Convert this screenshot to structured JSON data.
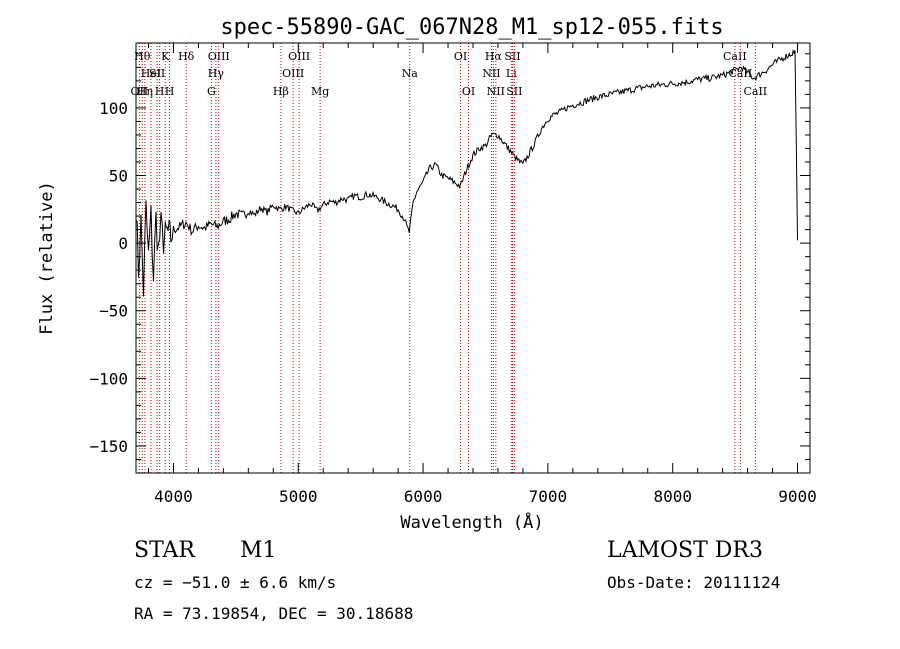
{
  "chart_data": {
    "type": "line",
    "title": "spec-55890-GAC_067N28_M1_sp12-055.fits",
    "xlabel": "Wavelength (Å)",
    "ylabel": "Flux (relative)",
    "xlim": [
      3700,
      9100
    ],
    "ylim": [
      -170,
      148
    ],
    "x_ticks": [
      {
        "value": 4000,
        "label": "4000"
      },
      {
        "value": 5000,
        "label": "5000"
      },
      {
        "value": 6000,
        "label": "6000"
      },
      {
        "value": 7000,
        "label": "7000"
      },
      {
        "value": 8000,
        "label": "8000"
      },
      {
        "value": 9000,
        "label": "9000"
      }
    ],
    "y_ticks": [
      {
        "value": 100,
        "label": "100"
      },
      {
        "value": 50,
        "label": "50"
      },
      {
        "value": 0,
        "label": "0"
      },
      {
        "value": -50,
        "label": "−50"
      },
      {
        "value": -100,
        "label": "−100"
      },
      {
        "value": -150,
        "label": "−150"
      }
    ],
    "series": [
      {
        "name": "flux",
        "x": [
          3700,
          3720,
          3740,
          3760,
          3780,
          3800,
          3820,
          3840,
          3860,
          3880,
          3900,
          3920,
          3950,
          3980,
          4000,
          4050,
          4100,
          4150,
          4200,
          4250,
          4300,
          4350,
          4400,
          4450,
          4500,
          4550,
          4600,
          4650,
          4700,
          4750,
          4800,
          4850,
          4900,
          4950,
          5000,
          5050,
          5100,
          5150,
          5200,
          5250,
          5300,
          5350,
          5400,
          5450,
          5500,
          5550,
          5600,
          5650,
          5700,
          5750,
          5800,
          5850,
          5870,
          5890,
          5900,
          5920,
          5950,
          6000,
          6050,
          6100,
          6150,
          6200,
          6250,
          6300,
          6350,
          6400,
          6450,
          6500,
          6550,
          6600,
          6650,
          6700,
          6750,
          6800,
          6850,
          6900,
          6950,
          7000,
          7050,
          7100,
          7150,
          7200,
          7300,
          7400,
          7500,
          7600,
          7700,
          7800,
          7900,
          8000,
          8100,
          8200,
          8300,
          8400,
          8450,
          8500,
          8550,
          8600,
          8650,
          8700,
          8750,
          8800,
          8850,
          8900,
          8950,
          8980,
          9000
        ],
        "y": [
          30,
          -20,
          15,
          -35,
          25,
          -10,
          20,
          -25,
          18,
          -5,
          12,
          2,
          8,
          4,
          10,
          12,
          15,
          9,
          13,
          11,
          14,
          12,
          16,
          18,
          22,
          20,
          24,
          21,
          26,
          23,
          28,
          25,
          27,
          24,
          22,
          26,
          29,
          24,
          28,
          31,
          30,
          33,
          32,
          35,
          34,
          36,
          35,
          33,
          30,
          28,
          25,
          18,
          12,
          8,
          15,
          30,
          38,
          45,
          55,
          58,
          50,
          48,
          45,
          42,
          55,
          65,
          70,
          72,
          80,
          80,
          74,
          68,
          62,
          58,
          66,
          75,
          85,
          92,
          95,
          97,
          100,
          102,
          105,
          108,
          110,
          112,
          114,
          116,
          117,
          118,
          119,
          121,
          122,
          124,
          126,
          128,
          130,
          126,
          122,
          125,
          128,
          132,
          135,
          138,
          140,
          142,
          2
        ]
      }
    ],
    "line_markers": [
      {
        "wavelength": 3727,
        "label": "OII",
        "row": 3
      },
      {
        "wavelength": 3750,
        "label": "Hθ",
        "row": 1
      },
      {
        "wavelength": 3771,
        "label": "Hη",
        "row": 3
      },
      {
        "wavelength": 3820,
        "label": "HeI",
        "row": 2
      },
      {
        "wavelength": 3869,
        "label": "SII",
        "row": 2
      },
      {
        "wavelength": 3889,
        "label": "H",
        "row": 3
      },
      {
        "wavelength": 3934,
        "label": "K",
        "row": 1
      },
      {
        "wavelength": 3969,
        "label": "H",
        "row": 3
      },
      {
        "wavelength": 4102,
        "label": "Hδ",
        "row": 1
      },
      {
        "wavelength": 4304,
        "label": "G",
        "row": 3
      },
      {
        "wavelength": 4340,
        "label": "Hγ",
        "row": 2
      },
      {
        "wavelength": 4363,
        "label": "OIII",
        "row": 1
      },
      {
        "wavelength": 4861,
        "label": "Hβ",
        "row": 3
      },
      {
        "wavelength": 4959,
        "label": "OIII",
        "row": 2
      },
      {
        "wavelength": 5007,
        "label": "OIII",
        "row": 1
      },
      {
        "wavelength": 5175,
        "label": "Mg",
        "row": 3
      },
      {
        "wavelength": 5893,
        "label": "Na",
        "row": 2
      },
      {
        "wavelength": 6300,
        "label": "OI",
        "row": 1
      },
      {
        "wavelength": 6364,
        "label": "OI",
        "row": 3
      },
      {
        "wavelength": 6548,
        "label": "NII",
        "row": 2
      },
      {
        "wavelength": 6563,
        "label": "Hα",
        "row": 1
      },
      {
        "wavelength": 6583,
        "label": "NII",
        "row": 3
      },
      {
        "wavelength": 6707,
        "label": "Li",
        "row": 2
      },
      {
        "wavelength": 6716,
        "label": "SII",
        "row": 1
      },
      {
        "wavelength": 6731,
        "label": "SII",
        "row": 3
      },
      {
        "wavelength": 8498,
        "label": "CaII",
        "row": 1
      },
      {
        "wavelength": 8542,
        "label": "CaII",
        "row": 2
      },
      {
        "wavelength": 8662,
        "label": "CaII",
        "row": 3
      }
    ]
  },
  "info": {
    "object_class": "STAR",
    "subclass": "M1",
    "survey": "LAMOST DR3",
    "cz": "cz = −51.0 ± 6.6 km/s",
    "obs_date": "Obs-Date: 20111124",
    "coords": "RA =  73.19854, DEC =  30.18688"
  },
  "colors": {
    "axes": "#000000",
    "spectrum": "#000000",
    "marker_line": "#cc0000"
  }
}
